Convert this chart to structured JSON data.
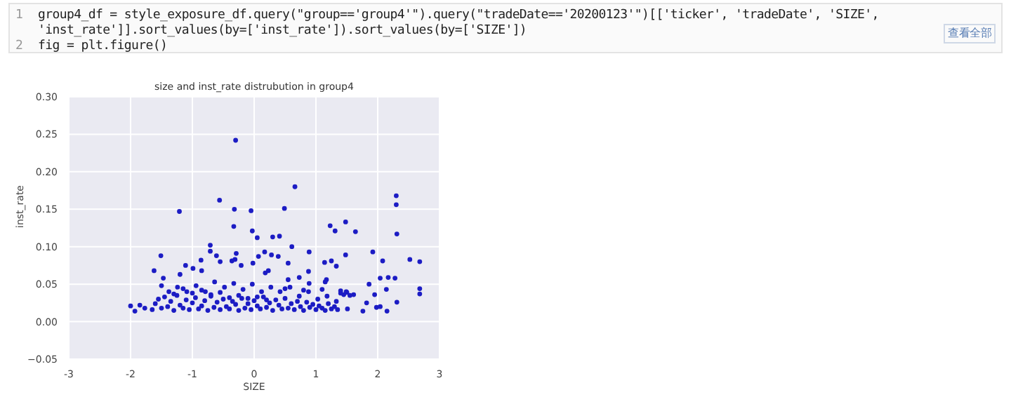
{
  "chart_data": {
    "type": "scatter",
    "title": "size and inst_rate distrubution in group4",
    "xlabel": "SIZE",
    "ylabel": "inst_rate",
    "annotations": [
      "1",
      "group4_df = style_exposure_df.query(\"group=='group4'\").query(\"tradeDate=='20200123'\")[['ticker', 'tradeDate', 'SIZE',",
      "'inst_rate']].sort_values(by=['inst_rate']).sort_values(by=['SIZE'])",
      "2",
      "fig = plt.figure()",
      "查看全部"
    ],
    "series": [
      {
        "color": "#1c1cc4",
        "x": [
          -0.3,
          0.66,
          -0.56,
          -1.21,
          -0.32,
          -0.05,
          0.49,
          -0.33,
          2.3,
          2.3,
          2.31,
          1.48,
          1.23,
          1.31,
          1.64,
          -0.03,
          0.05,
          0.3,
          0.41,
          0.61,
          0.89,
          1.92,
          2.52,
          2.68,
          2.08,
          1.48,
          1.25,
          1.14,
          1.33,
          -0.71,
          -0.71,
          -1.51,
          -0.61,
          -0.29,
          -0.31,
          -0.36,
          -0.55,
          -0.86,
          -0.99,
          -0.85,
          -1.11,
          -1.62,
          -1.2,
          -1.47,
          0.07,
          0.17,
          0.28,
          0.39,
          0.55,
          -0.02,
          0.23,
          0.18,
          0.88,
          -0.21,
          1.17,
          1.15,
          0.89,
          0.73,
          0.55,
          1.86,
          2.04,
          2.17,
          2.28,
          2.14,
          1.95,
          2.68,
          2.68,
          2.31,
          2.15,
          2.04,
          1.98,
          1.82,
          1.76,
          1.61,
          1.49,
          1.51,
          -2.0,
          -1.93,
          -1.85,
          -1.77,
          -1.5,
          -1.38,
          -1.24,
          -1.09,
          -0.94,
          -0.79,
          -0.64,
          -0.48,
          -0.33,
          -0.18,
          -0.03,
          0.12,
          0.27,
          0.42,
          0.58,
          0.73,
          0.88,
          1.03,
          1.18,
          1.33,
          -1.65,
          -1.6,
          -1.55,
          -1.5,
          -1.45,
          -1.4,
          -1.35,
          -1.3,
          -1.25,
          -1.2,
          -1.15,
          -1.1,
          -1.05,
          -1.0,
          -0.95,
          -0.9,
          -0.85,
          -0.8,
          -0.75,
          -0.7,
          -0.65,
          -0.6,
          -0.55,
          -0.5,
          -0.45,
          -0.4,
          -0.35,
          -0.3,
          -0.25,
          -0.2,
          -0.15,
          -0.1,
          -0.05,
          0.0,
          0.05,
          0.1,
          0.15,
          0.2,
          0.25,
          0.3,
          0.35,
          0.4,
          0.45,
          0.5,
          0.55,
          0.6,
          0.65,
          0.7,
          0.75,
          0.8,
          0.85,
          0.9,
          0.95,
          1.0,
          1.05,
          1.1,
          1.15,
          1.2,
          1.25,
          1.3,
          1.35,
          1.4,
          1.45,
          1.5,
          1.55,
          -1.3,
          -1.0,
          -0.7,
          -0.4,
          -0.1,
          0.2,
          0.5,
          0.8,
          1.1,
          1.4,
          -1.15,
          -0.85,
          -0.55,
          -0.25,
          0.05
        ],
        "values": [
          0.242,
          0.18,
          0.162,
          0.147,
          0.15,
          0.148,
          0.151,
          0.127,
          0.168,
          0.156,
          0.117,
          0.133,
          0.128,
          0.121,
          0.12,
          0.121,
          0.112,
          0.113,
          0.114,
          0.1,
          0.093,
          0.093,
          0.083,
          0.08,
          0.081,
          0.089,
          0.081,
          0.079,
          0.074,
          0.102,
          0.094,
          0.088,
          0.088,
          0.091,
          0.083,
          0.081,
          0.08,
          0.082,
          0.071,
          0.068,
          0.075,
          0.068,
          0.063,
          0.058,
          0.087,
          0.093,
          0.089,
          0.087,
          0.078,
          0.078,
          0.068,
          0.065,
          0.067,
          0.075,
          0.056,
          0.053,
          0.051,
          0.059,
          0.056,
          0.05,
          0.058,
          0.059,
          0.058,
          0.043,
          0.036,
          0.044,
          0.037,
          0.026,
          0.014,
          0.02,
          0.019,
          0.025,
          0.014,
          0.036,
          0.04,
          0.017,
          0.021,
          0.014,
          0.022,
          0.018,
          0.048,
          0.04,
          0.046,
          0.04,
          0.048,
          0.04,
          0.053,
          0.046,
          0.051,
          0.043,
          0.05,
          0.04,
          0.046,
          0.04,
          0.046,
          0.034,
          0.04,
          0.03,
          0.034,
          0.027,
          0.016,
          0.024,
          0.03,
          0.018,
          0.033,
          0.02,
          0.027,
          0.015,
          0.035,
          0.022,
          0.018,
          0.029,
          0.016,
          0.025,
          0.032,
          0.017,
          0.021,
          0.028,
          0.015,
          0.034,
          0.019,
          0.026,
          0.016,
          0.03,
          0.02,
          0.017,
          0.027,
          0.023,
          0.015,
          0.031,
          0.018,
          0.024,
          0.016,
          0.028,
          0.021,
          0.017,
          0.033,
          0.019,
          0.025,
          0.015,
          0.029,
          0.022,
          0.017,
          0.031,
          0.018,
          0.024,
          0.016,
          0.027,
          0.02,
          0.015,
          0.026,
          0.019,
          0.023,
          0.016,
          0.021,
          0.018,
          0.015,
          0.024,
          0.017,
          0.02,
          0.016,
          0.038,
          0.036,
          0.039,
          0.035,
          0.037,
          0.038,
          0.036,
          0.032,
          0.031,
          0.029,
          0.044,
          0.042,
          0.043,
          0.041,
          0.044,
          0.042,
          0.039,
          0.035,
          0.033
        ]
      }
    ],
    "xlim": [
      -3,
      3
    ],
    "xticks": [
      -3,
      -2,
      -1,
      0,
      1,
      2,
      3
    ],
    "ylim": [
      -0.05,
      0.3
    ],
    "yticks": [
      {
        "value": -0.05,
        "label": "−0.05"
      },
      {
        "value": 0,
        "label": "0.00"
      },
      {
        "value": 0.05,
        "label": "0.05"
      },
      {
        "value": 0.1,
        "label": "0.10"
      },
      {
        "value": 0.15,
        "label": "0.15"
      },
      {
        "value": 0.2,
        "label": "0.20"
      },
      {
        "value": 0.25,
        "label": "0.25"
      },
      {
        "value": 0.3,
        "label": "0.30"
      }
    ],
    "grid": true,
    "marker": "circle",
    "legend": false
  }
}
